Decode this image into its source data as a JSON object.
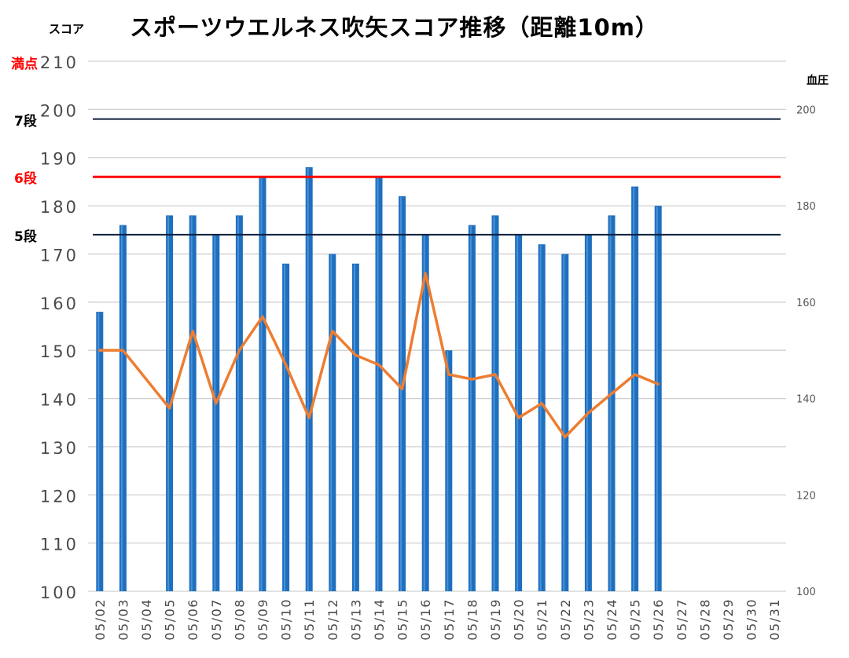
{
  "chart_data": {
    "type": "bar",
    "title": "スポーツウエルネス吹矢スコア推移（距離10m）",
    "ylabel": "スコア",
    "y2label": "血圧",
    "ylim": [
      100,
      210
    ],
    "y2lim": [
      100,
      210
    ],
    "yticks": [
      100,
      110,
      120,
      130,
      140,
      150,
      160,
      170,
      180,
      190,
      200,
      210
    ],
    "y2ticks": [
      100,
      120,
      140,
      160,
      180,
      200
    ],
    "categories": [
      "05/02",
      "05/03",
      "05/04",
      "05/05",
      "05/06",
      "05/07",
      "05/08",
      "05/09",
      "05/10",
      "05/11",
      "05/12",
      "05/13",
      "05/14",
      "05/15",
      "05/16",
      "05/17",
      "05/18",
      "05/19",
      "05/20",
      "05/21",
      "05/22",
      "05/23",
      "05/24",
      "05/25",
      "05/26",
      "05/27",
      "05/28",
      "05/29",
      "05/30",
      "05/31"
    ],
    "series": [
      {
        "kind": "bar",
        "axis": "left",
        "color": "#1f6fbf",
        "values": [
          158,
          176,
          null,
          178,
          178,
          174,
          178,
          186,
          168,
          188,
          170,
          168,
          186,
          182,
          174,
          150,
          176,
          178,
          174,
          172,
          170,
          174,
          178,
          184,
          180,
          null,
          null,
          null,
          null,
          null
        ]
      },
      {
        "kind": "line",
        "axis": "right",
        "color": "#ed7d31",
        "values": [
          150,
          150,
          null,
          138,
          154,
          139,
          150,
          157,
          147,
          136,
          154,
          149,
          147,
          142,
          166,
          145,
          144,
          145,
          136,
          139,
          132,
          137,
          141,
          145,
          143,
          null,
          null,
          null,
          null,
          null
        ]
      }
    ],
    "reference_lines": [
      {
        "label": "7段",
        "value": 198,
        "color": "#0d1f3c"
      },
      {
        "label": "6段",
        "value": 186,
        "color": "#ff0000"
      },
      {
        "label": "5段",
        "value": 174,
        "color": "#0d1f3c"
      }
    ],
    "top_label": {
      "label": "満点",
      "value": 210,
      "color": "#ff0000"
    },
    "grid": true
  }
}
